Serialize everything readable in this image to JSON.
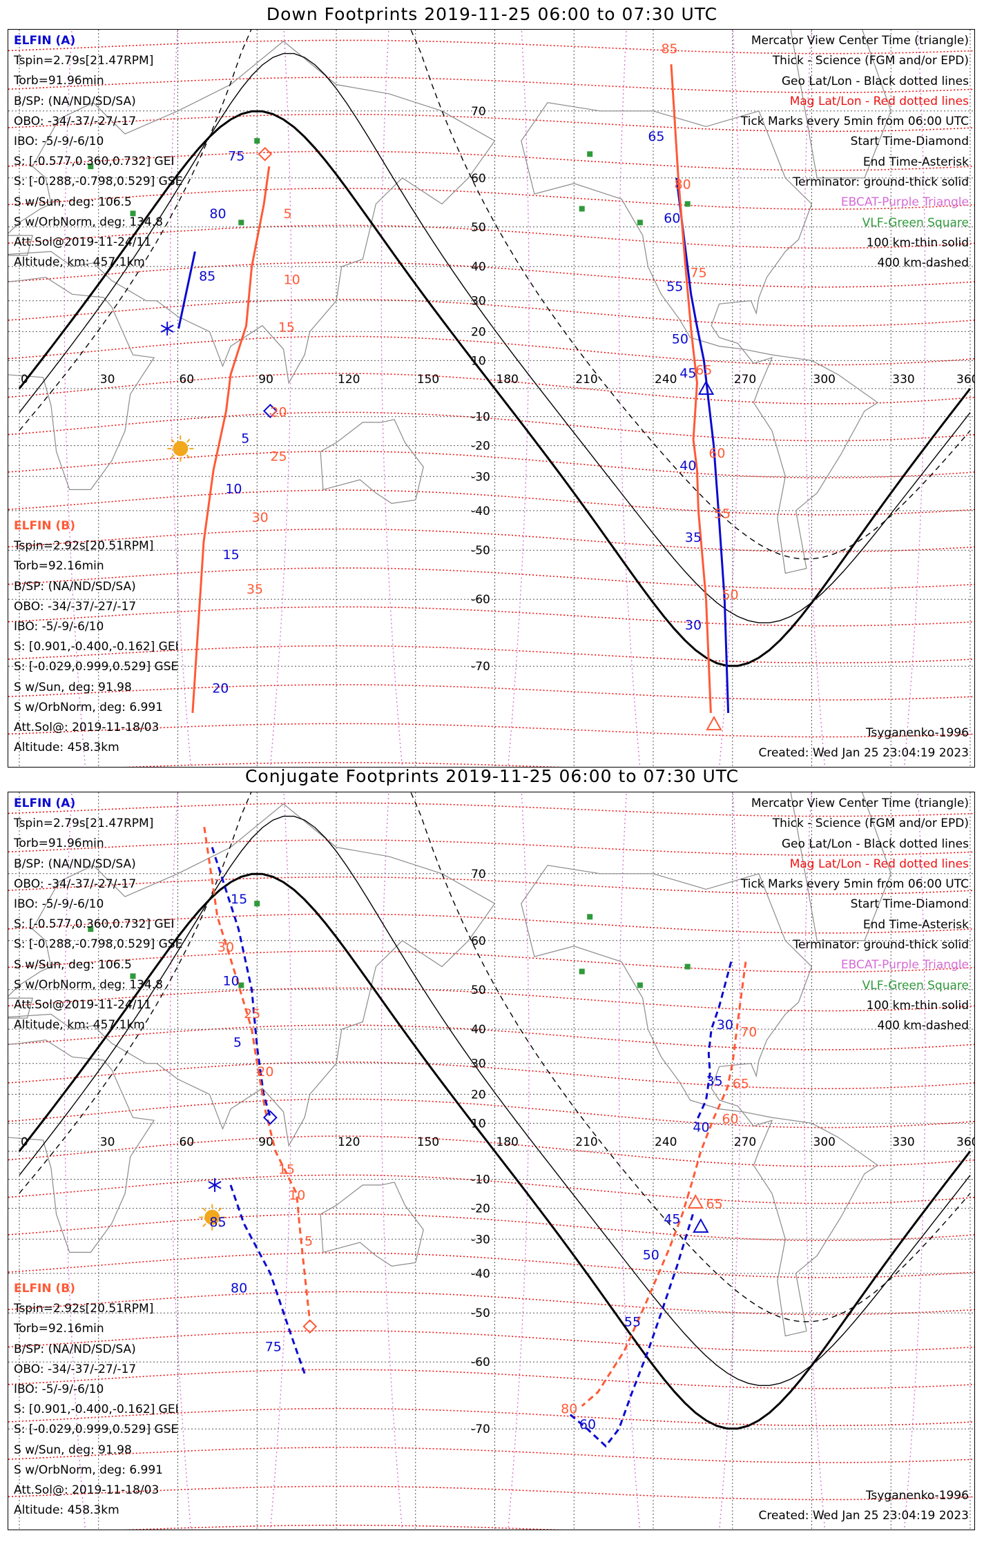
{
  "colors": {
    "elfin_a": "#0a0ad0",
    "elfin_b": "#ff5a36",
    "mag_red": "#ee1111",
    "geo_black": "#000000",
    "ebcat_purple": "#d66ad6",
    "vlf_green": "#2e9a3a",
    "sun": "#f2a81d"
  },
  "map": {
    "lon_ticks": [
      "0",
      "30",
      "60",
      "90",
      "120",
      "150",
      "180",
      "210",
      "240",
      "270",
      "300",
      "330",
      "360"
    ],
    "lat_ticks": [
      "70",
      "60",
      "50",
      "40",
      "30",
      "20",
      "10",
      "-10",
      "-20",
      "-30",
      "-40",
      "-50",
      "-60",
      "-70"
    ]
  },
  "legend": {
    "line1": "Mercator View Center Time (triangle)",
    "line2": "Thick - Science (FGM and/or EPD)",
    "line3": "Geo Lat/Lon - Black dotted lines",
    "line4": "Mag Lat/Lon - Red dotted lines",
    "line5": "Tick Marks every 5min from 06:00 UTC",
    "line6": "Start Time-Diamond",
    "line7": "End Time-Asterisk",
    "line8": "Terminator: ground-thick solid",
    "line9": "EBCAT-Purple Triangle",
    "line10": "VLF-Green Square",
    "line11": "100 km-thin solid",
    "line12": "400 km-dashed"
  },
  "elfin_a": {
    "name": "ELFIN (A)",
    "tspin": "Tspin=2.79s[21.47RPM]",
    "torb": "Torb=91.96min",
    "bsp": "B/SP: (NA/ND/SD/SA)",
    "obo": "OBO: -34/-37/-27/-17",
    "ibo": "IBO: -5/-9/-6/10",
    "s_gei": "S: [-0.577,0.360,0.732] GEI",
    "s_gse": "S: [-0.288,-0.798,0.529] GSE",
    "s_sun": "S w/Sun, deg: 106.5",
    "s_orb": "S w/OrbNorm, deg: 134.8",
    "att": "Att.Sol@2019-11-24/11",
    "alt": "Altitude, km: 457.1km"
  },
  "elfin_b": {
    "name": "ELFIN (B)",
    "tspin": "Tspin=2.92s[20.51RPM]",
    "torb": "Torb=92.16min",
    "bsp": "B/SP: (NA/ND/SD/SA)",
    "obo": "OBO: -34/-37/-27/-17",
    "ibo": "IBO: -5/-9/-6/10",
    "s_gei": "S: [0.901,-0.400,-0.162] GEI",
    "s_gse": "S: [-0.029,0.999,0.529] GSE",
    "s_sun": "S w/Sun, deg: 91.98",
    "s_orb": "S w/OrbNorm, deg: 6.991",
    "att": "Att.Sol@: 2019-11-18/03",
    "alt": "Altitude: 458.3km"
  },
  "footer": {
    "model": "Tsyganenko-1996",
    "created": "Created: Wed Jan 25 23:04:19 2023"
  },
  "panels": [
    {
      "id": "down",
      "title": "Down Footprints 2019-11-25 06:00 to 07:30 UTC",
      "track_style": "solid",
      "tracks": {
        "a_west": [
          [
            66.5,
            44
          ],
          [
            60.3,
            21
          ]
        ],
        "a_east": [
          [
            248.8,
            60
          ],
          [
            254.3,
            32
          ],
          [
            256.5,
            22
          ],
          [
            259.2,
            10
          ],
          [
            262.9,
            -20
          ],
          [
            264.7,
            -40
          ],
          [
            267,
            -60
          ],
          [
            268.4,
            -75
          ]
        ],
        "b_west": [
          [
            65.6,
            -75
          ],
          [
            69.8,
            -48
          ],
          [
            73.5,
            -28
          ],
          [
            78.3,
            -8
          ],
          [
            80,
            5
          ],
          [
            85.9,
            22
          ],
          [
            88,
            40
          ],
          [
            92.6,
            55
          ],
          [
            94.6,
            62
          ]
        ],
        "b_east": [
          [
            246.8,
            75
          ],
          [
            249.5,
            60
          ],
          [
            252.2,
            40
          ],
          [
            254.4,
            20
          ],
          [
            256.6,
            2
          ],
          [
            255.2,
            -18
          ],
          [
            256.6,
            -28
          ],
          [
            257.1,
            -40
          ],
          [
            260,
            -60
          ],
          [
            261.8,
            -75
          ]
        ]
      },
      "start_marker": {
        "a": [
          95,
          -8
        ],
        "b": [
          93,
          64
        ]
      },
      "end_marker": {
        "a": [
          56,
          21
        ]
      },
      "center_marker": {
        "a": [
          260,
          0
        ],
        "b": [
          263,
          -76
        ]
      },
      "sun": [
        61,
        -21
      ],
      "ticks_a": [
        {
          "t": "75",
          "lon": 79,
          "lat": 63
        },
        {
          "t": "80",
          "lon": 72,
          "lat": 52
        },
        {
          "t": "85",
          "lon": 68,
          "lat": 36
        },
        {
          "t": "5",
          "lon": 84,
          "lat": -19
        },
        {
          "t": "10",
          "lon": 78,
          "lat": -35
        },
        {
          "t": "15",
          "lon": 77,
          "lat": -52
        },
        {
          "t": "20",
          "lon": 73,
          "lat": -73
        },
        {
          "t": "65",
          "lon": 238,
          "lat": 66
        },
        {
          "t": "60",
          "lon": 244,
          "lat": 51
        },
        {
          "t": "55",
          "lon": 245,
          "lat": 33
        },
        {
          "t": "50",
          "lon": 247,
          "lat": 16
        },
        {
          "t": "45",
          "lon": 250,
          "lat": 4
        },
        {
          "t": "40",
          "lon": 250,
          "lat": -28
        },
        {
          "t": "35",
          "lon": 252,
          "lat": -48
        },
        {
          "t": "30",
          "lon": 252,
          "lat": -65
        }
      ],
      "ticks_b": [
        {
          "t": "5",
          "lon": 100,
          "lat": 52
        },
        {
          "t": "10",
          "lon": 100,
          "lat": 35
        },
        {
          "t": "15",
          "lon": 98,
          "lat": 20
        },
        {
          "t": "20",
          "lon": 95,
          "lat": -10
        },
        {
          "t": "25",
          "lon": 95,
          "lat": -25
        },
        {
          "t": "30",
          "lon": 88,
          "lat": -43
        },
        {
          "t": "35",
          "lon": 86,
          "lat": -59
        },
        {
          "t": "85",
          "lon": 243,
          "lat": 76
        },
        {
          "t": "80",
          "lon": 248,
          "lat": 58
        },
        {
          "t": "75",
          "lon": 254,
          "lat": 37
        },
        {
          "t": "65",
          "lon": 256,
          "lat": 5
        },
        {
          "t": "60",
          "lon": 261,
          "lat": -24
        },
        {
          "t": "55",
          "lon": 263,
          "lat": -42
        },
        {
          "t": "50",
          "lon": 266,
          "lat": -60
        }
      ]
    },
    {
      "id": "conjugate",
      "title": "Conjugate Footprints 2019-11-25 06:00 to 07:30 UTC",
      "track_style": "dashed",
      "tracks": {
        "a_west": [
          [
            73,
            73
          ],
          [
            83,
            62
          ],
          [
            88,
            50
          ],
          [
            90,
            35
          ],
          [
            92.5,
            20
          ],
          [
            95,
            12
          ]
        ],
        "a_east": [
          [
            269.5,
            56
          ],
          [
            265,
            46
          ],
          [
            262,
            40
          ],
          [
            261,
            33
          ],
          [
            261.5,
            27
          ],
          [
            260,
            18
          ],
          [
            256,
            10
          ]
        ],
        "b_west": [
          [
            70,
            75
          ],
          [
            75,
            64
          ],
          [
            82,
            53
          ],
          [
            88,
            40
          ],
          [
            90,
            30
          ],
          [
            93,
            15
          ],
          [
            97,
            0
          ],
          [
            105,
            -15
          ],
          [
            106,
            -25
          ],
          [
            108,
            -40
          ],
          [
            110,
            -52
          ]
        ],
        "b_east": [
          [
            275,
            56
          ],
          [
            272,
            42
          ],
          [
            270,
            30
          ],
          [
            268,
            22
          ],
          [
            263,
            12
          ],
          [
            258,
            0
          ],
          [
            255,
            -10
          ],
          [
            251,
            -22
          ],
          [
            246,
            -33
          ],
          [
            237,
            -48
          ],
          [
            229,
            -58
          ],
          [
            219,
            -65
          ],
          [
            213,
            -67
          ]
        ],
        "a_far": [
          [
            80,
            -12
          ],
          [
            85,
            -25
          ],
          [
            95,
            -40
          ],
          [
            103,
            -55
          ],
          [
            108,
            -62
          ]
        ],
        "a_far2": [
          [
            255,
            -22
          ],
          [
            249,
            -38
          ],
          [
            243,
            -50
          ],
          [
            238,
            -58
          ],
          [
            232,
            -65
          ],
          [
            227,
            -70
          ],
          [
            222,
            -72
          ],
          [
            215,
            -70
          ],
          [
            208,
            -68
          ]
        ]
      },
      "start_marker": {
        "a": [
          95,
          12
        ],
        "b": [
          110,
          -53
        ]
      },
      "end_marker": {
        "a": [
          74,
          -12
        ]
      },
      "center_marker": {
        "a": [
          258,
          -26
        ],
        "b": [
          256,
          -18
        ]
      },
      "sun": [
        73,
        -23
      ],
      "ticks_a": [
        {
          "t": "15",
          "lon": 80,
          "lat": 66
        },
        {
          "t": "10",
          "lon": 77,
          "lat": 51
        },
        {
          "t": "5",
          "lon": 81,
          "lat": 35
        },
        {
          "t": "85",
          "lon": 72,
          "lat": -26
        },
        {
          "t": "80",
          "lon": 80,
          "lat": -45
        },
        {
          "t": "75",
          "lon": 93,
          "lat": -58
        },
        {
          "t": "30",
          "lon": 264,
          "lat": 40
        },
        {
          "t": "35",
          "lon": 260,
          "lat": 23
        },
        {
          "t": "40",
          "lon": 255,
          "lat": 7
        },
        {
          "t": "45",
          "lon": 244,
          "lat": -25
        },
        {
          "t": "50",
          "lon": 236,
          "lat": -36
        },
        {
          "t": "55",
          "lon": 229,
          "lat": -53
        },
        {
          "t": "60",
          "lon": 212,
          "lat": -70
        }
      ],
      "ticks_b": [
        {
          "t": "30",
          "lon": 75,
          "lat": 58
        },
        {
          "t": "25",
          "lon": 85,
          "lat": 43
        },
        {
          "t": "20",
          "lon": 90,
          "lat": 26
        },
        {
          "t": "15",
          "lon": 98,
          "lat": -8
        },
        {
          "t": "10",
          "lon": 102,
          "lat": -17
        },
        {
          "t": "5",
          "lon": 108,
          "lat": -32
        },
        {
          "t": "70",
          "lon": 273,
          "lat": 38
        },
        {
          "t": "65",
          "lon": 270,
          "lat": 22
        },
        {
          "t": "60",
          "lon": 266,
          "lat": 10
        },
        {
          "t": "65",
          "lon": 260,
          "lat": -20
        },
        {
          "t": "80",
          "lon": 205,
          "lat": -68
        }
      ]
    }
  ]
}
